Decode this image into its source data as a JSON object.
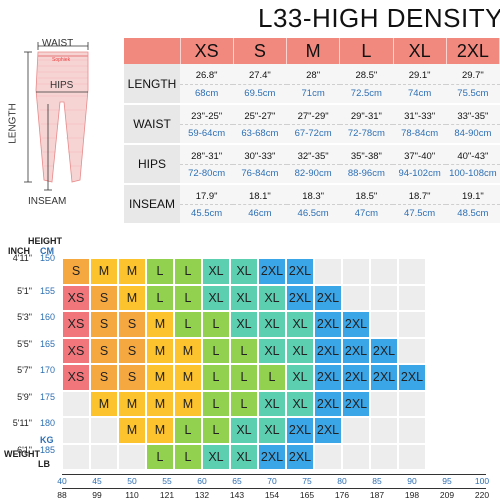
{
  "title": "L33-HIGH DENSITY",
  "diagram": {
    "waist_label": "WAIST",
    "hips_label": "HIPS",
    "length_label": "LENGTH",
    "inseam_label": "INSEAM",
    "brand": "Sophiek"
  },
  "size_table": {
    "sizes": [
      "XS",
      "S",
      "M",
      "L",
      "XL",
      "2XL"
    ],
    "rows": [
      {
        "label": "LENGTH",
        "inches": [
          "26.8\"",
          "27.4\"",
          "28\"",
          "28.5\"",
          "29.1\"",
          "29.7\""
        ],
        "cm": [
          "68cm",
          "69.5cm",
          "71cm",
          "72.5cm",
          "74cm",
          "75.5cm"
        ]
      },
      {
        "label": "WAIST",
        "inches": [
          "23\"-25\"",
          "25\"-27\"",
          "27\"-29\"",
          "29\"-31\"",
          "31\"-33\"",
          "33\"-35\""
        ],
        "cm": [
          "59-64cm",
          "63-68cm",
          "67-72cm",
          "72-78cm",
          "78-84cm",
          "84-90cm"
        ]
      },
      {
        "label": "HIPS",
        "inches": [
          "28\"-31\"",
          "30\"-33\"",
          "32\"-35\"",
          "35\"-38\"",
          "37\"-40\"",
          "40\"-43\""
        ],
        "cm": [
          "72-80cm",
          "76-84cm",
          "82-90cm",
          "88-96cm",
          "94-102cm",
          "100-108cm"
        ]
      },
      {
        "label": "INSEAM",
        "inches": [
          "17.9\"",
          "18.1\"",
          "18.3\"",
          "18.5\"",
          "18.7\"",
          "19.1\""
        ],
        "cm": [
          "45.5cm",
          "46cm",
          "46.5cm",
          "47cm",
          "47.5cm",
          "48.5cm"
        ]
      }
    ]
  },
  "grid": {
    "height_title": "HEIGHT",
    "inch_title": "INCH",
    "cm_title": "CM",
    "kg_title": "KG",
    "weight_title": "WEIGHT",
    "lb_title": "LB",
    "height_inches": [
      "4'11\"",
      "5'1\"",
      "5'3\"",
      "5'5\"",
      "5'7\"",
      "5'9\"",
      "5'11\"",
      "6'1\""
    ],
    "height_cm": [
      "150",
      "155",
      "160",
      "165",
      "170",
      "175",
      "180",
      "185"
    ],
    "kg_ticks": [
      "40",
      "45",
      "50",
      "55",
      "60",
      "65",
      "70",
      "75",
      "80",
      "85",
      "90",
      "95",
      "100"
    ],
    "lb_ticks": [
      "88",
      "99",
      "110",
      "121",
      "132",
      "143",
      "154",
      "165",
      "176",
      "187",
      "198",
      "209",
      "220"
    ],
    "colors": {
      "XS": "#f0767c",
      "S": "#f5a840",
      "M": "#fdc32f",
      "L": "#92d050",
      "XL": "#5ccfb0",
      "2XL": "#3aa6e8",
      "empty": "#ededed"
    },
    "rows": [
      [
        "S",
        "M",
        "M",
        "L",
        "L",
        "XL",
        "XL",
        "2XL",
        "2XL",
        "",
        "",
        "",
        ""
      ],
      [
        "XS",
        "S",
        "M",
        "L",
        "L",
        "XL",
        "XL",
        "XL",
        "2XL",
        "2XL",
        "",
        "",
        ""
      ],
      [
        "XS",
        "S",
        "S",
        "M",
        "L",
        "L",
        "XL",
        "XL",
        "XL",
        "2XL",
        "2XL",
        "",
        ""
      ],
      [
        "XS",
        "S",
        "S",
        "M",
        "M",
        "L",
        "L",
        "XL",
        "XL",
        "2XL",
        "2XL",
        "2XL",
        ""
      ],
      [
        "XS",
        "S",
        "S",
        "M",
        "M",
        "L",
        "L",
        "L",
        "XL",
        "2XL",
        "2XL",
        "2XL",
        "2XL"
      ],
      [
        "",
        "M",
        "M",
        "M",
        "M",
        "L",
        "L",
        "XL",
        "XL",
        "2XL",
        "2XL",
        "",
        ""
      ],
      [
        "",
        "",
        "M",
        "M",
        "L",
        "L",
        "XL",
        "XL",
        "2XL",
        "2XL",
        "",
        "",
        ""
      ],
      [
        "",
        "",
        "",
        "L",
        "L",
        "XL",
        "XL",
        "2XL",
        "2XL",
        "",
        "",
        "",
        ""
      ]
    ]
  }
}
